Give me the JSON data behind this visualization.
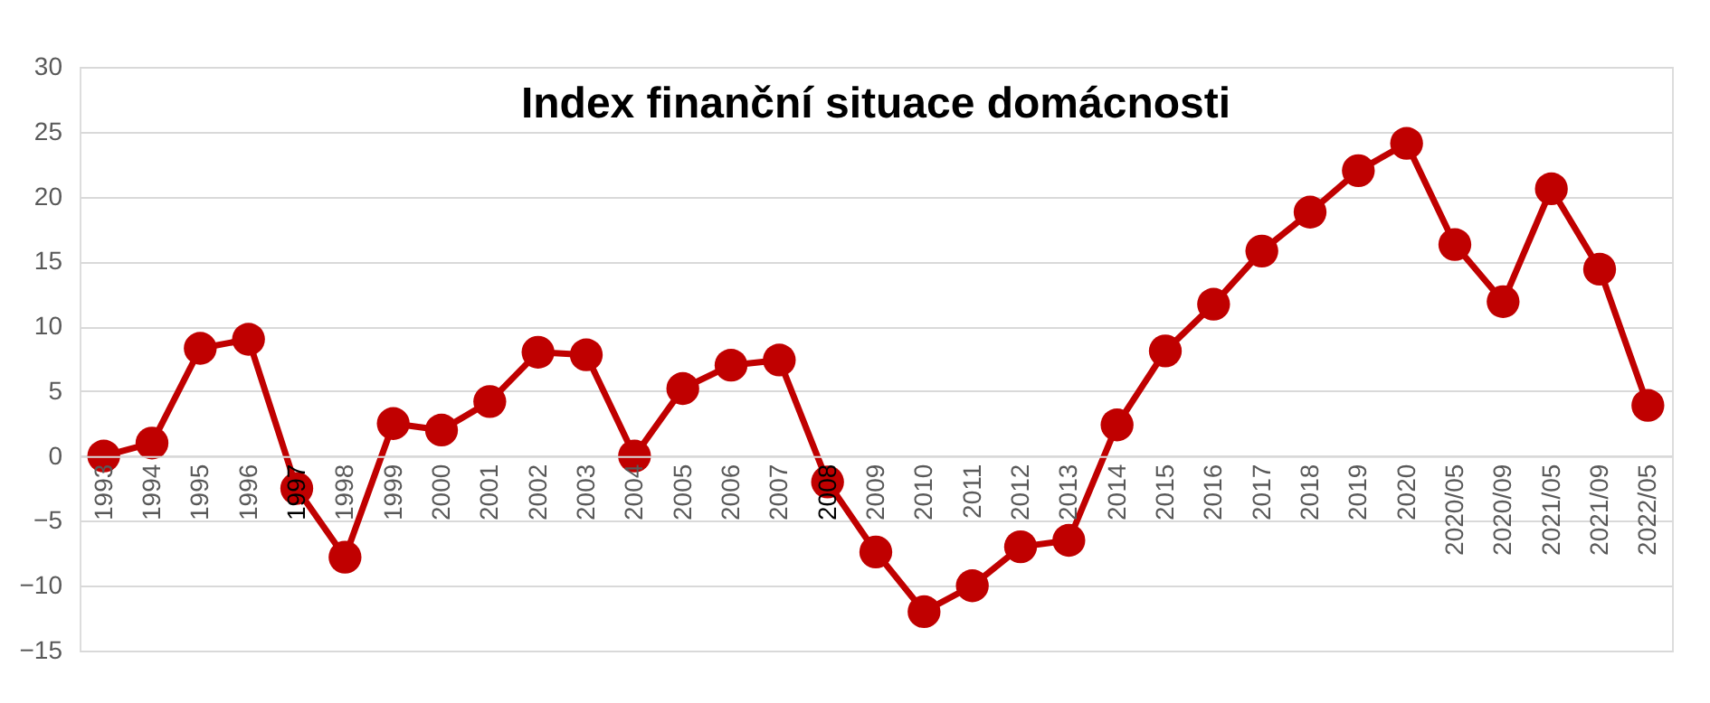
{
  "chart_data": {
    "type": "line",
    "title": "Index finanční situace domácnosti",
    "categories": [
      "1993",
      "1994",
      "1995",
      "1996",
      "1997",
      "1998",
      "1999",
      "2000",
      "2001",
      "2002",
      "2003",
      "2004",
      "2005",
      "2006",
      "2007",
      "2008",
      "2009",
      "2010",
      "2011",
      "2012",
      "2013",
      "2014",
      "2015",
      "2016",
      "2017",
      "2018",
      "2019",
      "2020",
      "2020/05",
      "2020/09",
      "2021/05",
      "2021/09",
      "2022/05"
    ],
    "series": [
      {
        "color": "#c00000",
        "values": [
          0,
          1,
          8.3,
          9,
          -2.5,
          -7.8,
          2.5,
          2,
          4.2,
          8,
          7.8,
          0,
          5.2,
          7,
          7.4,
          -2,
          -7.4,
          -12,
          -10,
          -7,
          -6.5,
          2.4,
          8.1,
          11.7,
          15.8,
          18.8,
          22,
          24.1,
          16.3,
          11.9,
          20.6,
          14.4,
          3.9
        ]
      }
    ],
    "ylim": [
      -15,
      30
    ],
    "yticks": [
      -15,
      -10,
      -5,
      0,
      5,
      10,
      15,
      20,
      25,
      30
    ],
    "grid": "y",
    "marker": "circle",
    "line_style": "solid"
  }
}
